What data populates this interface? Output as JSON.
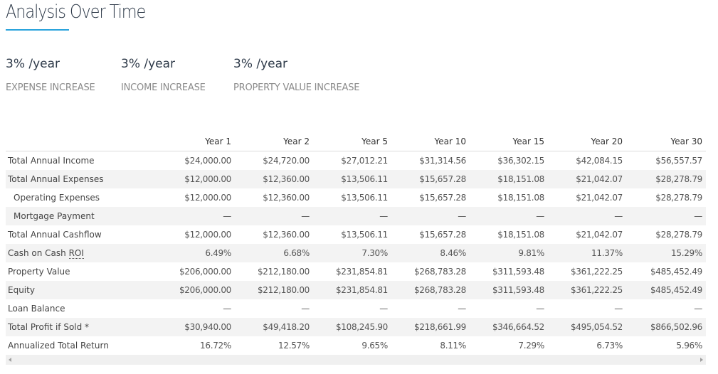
{
  "page": {
    "title": "Analysis Over Time"
  },
  "stats": [
    {
      "value": "3% /year",
      "label": "EXPENSE INCREASE"
    },
    {
      "value": "3% /year",
      "label": "INCOME INCREASE"
    },
    {
      "value": "3% /year",
      "label": "PROPERTY VALUE INCREASE"
    }
  ],
  "table": {
    "columns": [
      "",
      "Year 1",
      "Year 2",
      "Year 5",
      "Year 10",
      "Year 15",
      "Year 20",
      "Year 30"
    ],
    "rows": [
      {
        "label": "Total Annual Income",
        "values": [
          "$24,000.00",
          "$24,720.00",
          "$27,012.21",
          "$31,314.56",
          "$36,302.15",
          "$42,084.15",
          "$56,557.57"
        ]
      },
      {
        "label": "Total Annual Expenses",
        "values": [
          "$12,000.00",
          "$12,360.00",
          "$13,506.11",
          "$15,657.28",
          "$18,151.08",
          "$21,042.07",
          "$28,278.79"
        ]
      },
      {
        "label": "Operating Expenses",
        "values": [
          "$12,000.00",
          "$12,360.00",
          "$13,506.11",
          "$15,657.28",
          "$18,151.08",
          "$21,042.07",
          "$28,278.79"
        ]
      },
      {
        "label": "Mortgage Payment",
        "values": [
          "—",
          "—",
          "—",
          "—",
          "—",
          "—",
          "—"
        ]
      },
      {
        "label": "Total Annual Cashflow",
        "values": [
          "$12,000.00",
          "$12,360.00",
          "$13,506.11",
          "$15,657.28",
          "$18,151.08",
          "$21,042.07",
          "$28,278.79"
        ]
      },
      {
        "label_prefix": "Cash on Cash ",
        "label_abbr": "ROI",
        "values": [
          "6.49%",
          "6.68%",
          "7.30%",
          "8.46%",
          "9.81%",
          "11.37%",
          "15.29%"
        ]
      },
      {
        "label": "Property Value",
        "values": [
          "$206,000.00",
          "$212,180.00",
          "$231,854.81",
          "$268,783.28",
          "$311,593.48",
          "$361,222.25",
          "$485,452.49"
        ]
      },
      {
        "label": "Equity",
        "values": [
          "$206,000.00",
          "$212,180.00",
          "$231,854.81",
          "$268,783.28",
          "$311,593.48",
          "$361,222.25",
          "$485,452.49"
        ]
      },
      {
        "label": "Loan Balance",
        "values": [
          "—",
          "—",
          "—",
          "—",
          "—",
          "—",
          "—"
        ]
      },
      {
        "label": "Total Profit if Sold *",
        "values": [
          "$30,940.00",
          "$49,418.20",
          "$108,245.90",
          "$218,661.99",
          "$346,664.52",
          "$495,054.52",
          "$866,502.96"
        ]
      },
      {
        "label": "Annualized Total Return",
        "values": [
          "16.72%",
          "12.57%",
          "9.65%",
          "8.11%",
          "7.29%",
          "6.73%",
          "5.96%"
        ]
      }
    ]
  },
  "colors": {
    "accent": "#2aa3dc",
    "row_shade": "#f3f3f3"
  }
}
